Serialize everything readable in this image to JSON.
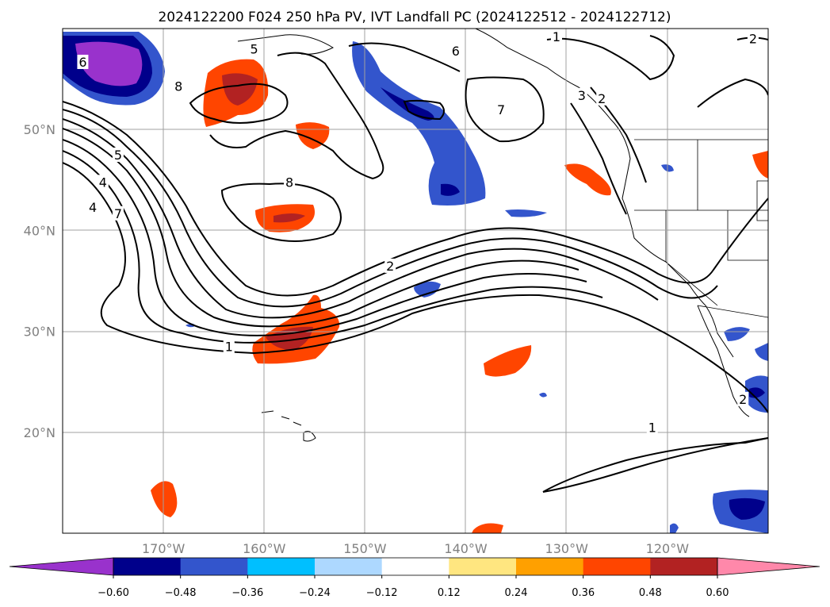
{
  "title": "2024122200 F024 250 hPa PV, IVT Landfall PC (2024122512 - 2024122712)",
  "map": {
    "projection": "lat-lon",
    "lon_range": [
      -180,
      -110
    ],
    "lat_range": [
      10,
      60
    ],
    "grid": true,
    "lon_labels": [
      {
        "lon": -170,
        "text": "170°W"
      },
      {
        "lon": -160,
        "text": "160°W"
      },
      {
        "lon": -150,
        "text": "150°W"
      },
      {
        "lon": -140,
        "text": "140°W"
      },
      {
        "lon": -130,
        "text": "130°W"
      },
      {
        "lon": -120,
        "text": "120°W"
      }
    ],
    "lat_labels": [
      {
        "lat": 50,
        "text": "50°N"
      },
      {
        "lat": 40,
        "text": "40°N"
      },
      {
        "lat": 30,
        "text": "30°N"
      },
      {
        "lat": 20,
        "text": "20°N"
      }
    ],
    "contour_labels": [
      {
        "text": "6",
        "lon": -178,
        "lat": 56.7
      },
      {
        "text": "5",
        "lon": -161,
        "lat": 58.0
      },
      {
        "text": "8",
        "lon": -168.5,
        "lat": 54.3
      },
      {
        "text": "5",
        "lon": -174.5,
        "lat": 47.5
      },
      {
        "text": "4",
        "lon": -176,
        "lat": 44.8
      },
      {
        "text": "4",
        "lon": -177,
        "lat": 42.3
      },
      {
        "text": "7",
        "lon": -174.5,
        "lat": 41.7
      },
      {
        "text": "8",
        "lon": -157.5,
        "lat": 44.8
      },
      {
        "text": "6",
        "lon": -141,
        "lat": 57.8
      },
      {
        "text": "7",
        "lon": -136.5,
        "lat": 52.0
      },
      {
        "text": "1",
        "lon": -131,
        "lat": 59.2
      },
      {
        "text": "3",
        "lon": -128.5,
        "lat": 53.4
      },
      {
        "text": "2",
        "lon": -126.5,
        "lat": 53.1
      },
      {
        "text": "2",
        "lon": -111.5,
        "lat": 59.0
      },
      {
        "text": "2",
        "lon": -147.5,
        "lat": 36.5
      },
      {
        "text": "1",
        "lon": -163.5,
        "lat": 28.5
      },
      {
        "text": "1",
        "lon": -121.5,
        "lat": 20.5
      },
      {
        "text": "2",
        "lon": -112.5,
        "lat": 23.3
      }
    ]
  },
  "colorbar": {
    "ticks": [
      "−0.60",
      "−0.48",
      "−0.36",
      "−0.24",
      "−0.12",
      "0.12",
      "0.24",
      "0.36",
      "0.48",
      "0.60"
    ],
    "colors": [
      "#9932cc",
      "#00008b",
      "#3355cc",
      "#00bfff",
      "#add8ff",
      "#ffffff",
      "#ffe680",
      "#ffa000",
      "#ff4500",
      "#b22222",
      "#ff88aa"
    ],
    "extend": "both"
  }
}
